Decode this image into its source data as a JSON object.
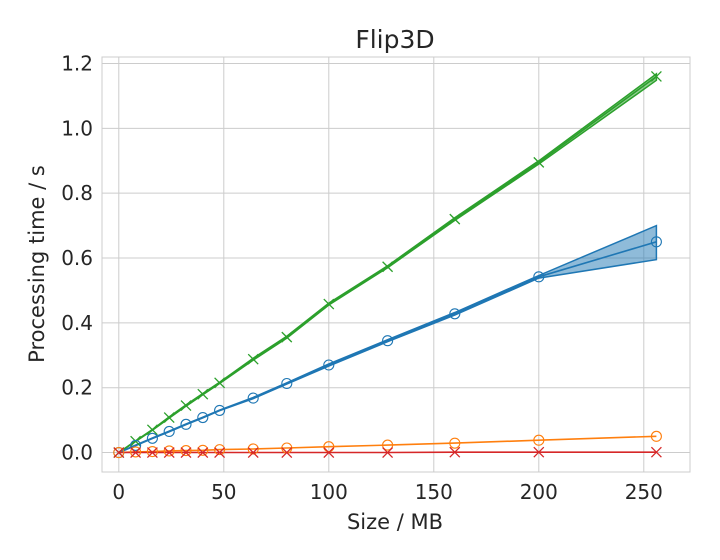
{
  "chart_data": {
    "type": "line",
    "title": "Flip3D",
    "xlabel": "Size / MB",
    "ylabel": "Processing time / s",
    "xlim": [
      -8,
      272
    ],
    "ylim": [
      -0.06,
      1.22
    ],
    "xticks": [
      0,
      50,
      100,
      150,
      200,
      250
    ],
    "yticks": [
      0.0,
      0.2,
      0.4,
      0.6,
      0.8,
      1.0,
      1.2
    ],
    "xtick_labels": [
      "0",
      "50",
      "100",
      "150",
      "200",
      "250"
    ],
    "ytick_labels": [
      "0.0",
      "0.2",
      "0.4",
      "0.6",
      "0.8",
      "1.0",
      "1.2"
    ],
    "grid": true,
    "x": [
      0,
      8,
      16,
      24,
      32,
      40,
      48,
      64,
      80,
      100,
      128,
      160,
      200,
      256
    ],
    "series": [
      {
        "color": "#2ca02c",
        "marker": "x",
        "values": [
          0.0,
          0.035,
          0.07,
          0.108,
          0.145,
          0.18,
          0.215,
          0.288,
          0.356,
          0.458,
          0.573,
          0.72,
          0.895,
          1.16
        ],
        "band_lower": [
          0.0,
          0.034,
          0.069,
          0.106,
          0.143,
          0.178,
          0.213,
          0.285,
          0.353,
          0.455,
          0.57,
          0.716,
          0.89,
          1.148
        ],
        "band_upper": [
          0.0,
          0.036,
          0.071,
          0.11,
          0.147,
          0.182,
          0.217,
          0.291,
          0.359,
          0.461,
          0.576,
          0.724,
          0.9,
          1.168
        ]
      },
      {
        "color": "#1f77b4",
        "marker": "o",
        "values": [
          0.0,
          0.022,
          0.044,
          0.065,
          0.087,
          0.108,
          0.13,
          0.168,
          0.213,
          0.27,
          0.345,
          0.428,
          0.542,
          0.65
        ],
        "band_lower": [
          0.0,
          0.021,
          0.043,
          0.064,
          0.086,
          0.107,
          0.129,
          0.166,
          0.211,
          0.267,
          0.342,
          0.424,
          0.538,
          0.595
        ],
        "band_upper": [
          0.0,
          0.023,
          0.045,
          0.066,
          0.088,
          0.109,
          0.131,
          0.17,
          0.215,
          0.273,
          0.348,
          0.432,
          0.546,
          0.7
        ]
      },
      {
        "color": "#ff7f0e",
        "marker": "o",
        "values": [
          0.0,
          0.002,
          0.003,
          0.005,
          0.006,
          0.007,
          0.009,
          0.011,
          0.014,
          0.018,
          0.023,
          0.029,
          0.038,
          0.05
        ]
      },
      {
        "color": "#d62728",
        "marker": "x",
        "values": [
          0.0,
          0.0,
          0.0,
          0.0,
          0.0,
          0.0,
          0.0,
          0.0,
          0.0,
          0.0,
          0.0,
          0.001,
          0.001,
          0.001
        ]
      }
    ]
  }
}
